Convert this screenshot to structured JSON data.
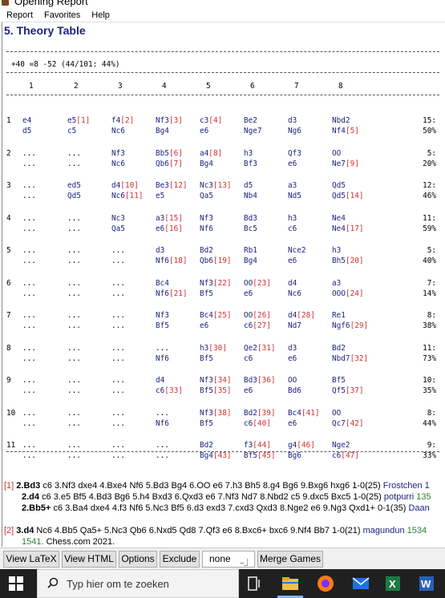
{
  "window": {
    "title": "Opening Report"
  },
  "menu": [
    "Report",
    "Favorites",
    "Help"
  ],
  "heading": "5. Theory Table",
  "stats": "+40 =8 -52 (44/101: 44%)",
  "columns": [
    "1",
    "2",
    "3",
    "4",
    "5",
    "6",
    "7",
    "8"
  ],
  "rows": [
    {
      "num": "1",
      "w": [
        [
          "e4",
          ""
        ],
        [
          "e5",
          "[1]"
        ],
        [
          "f4",
          "[2]"
        ],
        [
          "Nf3",
          "[3]"
        ],
        [
          "c3",
          "[4]"
        ],
        [
          "Be2",
          ""
        ],
        [
          "d3",
          ""
        ],
        [
          "Nbd2",
          ""
        ]
      ],
      "b": [
        [
          "d5",
          ""
        ],
        [
          "c5",
          ""
        ],
        [
          "Nc6",
          ""
        ],
        [
          "Bg4",
          ""
        ],
        [
          "e6",
          ""
        ],
        [
          "Nge7",
          ""
        ],
        [
          "Ng6",
          ""
        ],
        [
          "Nf4",
          "[5]"
        ]
      ],
      "count": "15:",
      "pct": "50%"
    },
    {
      "num": "2",
      "w": [
        [
          "...",
          ""
        ],
        [
          "...",
          ""
        ],
        [
          "Nf3",
          ""
        ],
        [
          "Bb5",
          "[6]"
        ],
        [
          "a4",
          "[8]"
        ],
        [
          "h3",
          ""
        ],
        [
          "Qf3",
          ""
        ],
        [
          "OO",
          ""
        ]
      ],
      "b": [
        [
          "...",
          ""
        ],
        [
          "...",
          ""
        ],
        [
          "Nc6",
          ""
        ],
        [
          "Qb6",
          "[7]"
        ],
        [
          "Bg4",
          ""
        ],
        [
          "Bf3",
          ""
        ],
        [
          "e6",
          ""
        ],
        [
          "Ne7",
          "[9]"
        ]
      ],
      "count": "5:",
      "pct": "20%"
    },
    {
      "num": "3",
      "w": [
        [
          "...",
          ""
        ],
        [
          "ed5",
          ""
        ],
        [
          "d4",
          "[10]"
        ],
        [
          "Be3",
          "[12]"
        ],
        [
          "Nc3",
          "[13]"
        ],
        [
          "d5",
          ""
        ],
        [
          "a3",
          ""
        ],
        [
          "Qd5",
          ""
        ]
      ],
      "b": [
        [
          "...",
          ""
        ],
        [
          "Qd5",
          ""
        ],
        [
          "Nc6",
          "[11]"
        ],
        [
          "e5",
          ""
        ],
        [
          "Qa5",
          ""
        ],
        [
          "Nb4",
          ""
        ],
        [
          "Nd5",
          ""
        ],
        [
          "Qd5",
          "[14]"
        ]
      ],
      "count": "12:",
      "pct": "46%"
    },
    {
      "num": "4",
      "w": [
        [
          "...",
          ""
        ],
        [
          "...",
          ""
        ],
        [
          "Nc3",
          ""
        ],
        [
          "a3",
          "[15]"
        ],
        [
          "Nf3",
          ""
        ],
        [
          "Bd3",
          ""
        ],
        [
          "h3",
          ""
        ],
        [
          "Ne4",
          ""
        ]
      ],
      "b": [
        [
          "...",
          ""
        ],
        [
          "...",
          ""
        ],
        [
          "Qa5",
          ""
        ],
        [
          "e6",
          "[16]"
        ],
        [
          "Nf6",
          ""
        ],
        [
          "Bc5",
          ""
        ],
        [
          "c6",
          ""
        ],
        [
          "Ne4",
          "[17]"
        ]
      ],
      "count": "11:",
      "pct": "59%"
    },
    {
      "num": "5",
      "w": [
        [
          "...",
          ""
        ],
        [
          "...",
          ""
        ],
        [
          "...",
          ""
        ],
        [
          "d3",
          ""
        ],
        [
          "Bd2",
          ""
        ],
        [
          "Rb1",
          ""
        ],
        [
          "Nce2",
          ""
        ],
        [
          "h3",
          ""
        ]
      ],
      "b": [
        [
          "...",
          ""
        ],
        [
          "...",
          ""
        ],
        [
          "...",
          ""
        ],
        [
          "Nf6",
          "[18]"
        ],
        [
          "Qb6",
          "[19]"
        ],
        [
          "Bg4",
          ""
        ],
        [
          "e6",
          ""
        ],
        [
          "Bh5",
          "[20]"
        ]
      ],
      "count": "5:",
      "pct": "40%"
    },
    {
      "num": "6",
      "w": [
        [
          "...",
          ""
        ],
        [
          "...",
          ""
        ],
        [
          "...",
          ""
        ],
        [
          "Bc4",
          ""
        ],
        [
          "Nf3",
          "[22]"
        ],
        [
          "OO",
          "[23]"
        ],
        [
          "d4",
          ""
        ],
        [
          "a3",
          ""
        ]
      ],
      "b": [
        [
          "...",
          ""
        ],
        [
          "...",
          ""
        ],
        [
          "...",
          ""
        ],
        [
          "Nf6",
          "[21]"
        ],
        [
          "Bf5",
          ""
        ],
        [
          "e6",
          ""
        ],
        [
          "Nc6",
          ""
        ],
        [
          "OOO",
          "[24]"
        ]
      ],
      "count": "7:",
      "pct": "14%"
    },
    {
      "num": "7",
      "w": [
        [
          "...",
          ""
        ],
        [
          "...",
          ""
        ],
        [
          "...",
          ""
        ],
        [
          "Nf3",
          ""
        ],
        [
          "Bc4",
          "[25]"
        ],
        [
          "OO",
          "[26]"
        ],
        [
          "d4",
          "[28]"
        ],
        [
          "Re1",
          ""
        ]
      ],
      "b": [
        [
          "...",
          ""
        ],
        [
          "...",
          ""
        ],
        [
          "...",
          ""
        ],
        [
          "Bf5",
          ""
        ],
        [
          "e6",
          ""
        ],
        [
          "c6",
          "[27]"
        ],
        [
          "Nd7",
          ""
        ],
        [
          "Ngf6",
          "[29]"
        ]
      ],
      "count": "8:",
      "pct": "38%"
    },
    {
      "num": "8",
      "w": [
        [
          "...",
          ""
        ],
        [
          "...",
          ""
        ],
        [
          "...",
          ""
        ],
        [
          "...",
          ""
        ],
        [
          "h3",
          "[30]"
        ],
        [
          "Qe2",
          "[31]"
        ],
        [
          "d3",
          ""
        ],
        [
          "Bd2",
          ""
        ]
      ],
      "b": [
        [
          "...",
          ""
        ],
        [
          "...",
          ""
        ],
        [
          "...",
          ""
        ],
        [
          "Nf6",
          ""
        ],
        [
          "Bf5",
          ""
        ],
        [
          "c6",
          ""
        ],
        [
          "e6",
          ""
        ],
        [
          "Nbd7",
          "[32]"
        ]
      ],
      "count": "11:",
      "pct": "73%"
    },
    {
      "num": "9",
      "w": [
        [
          "...",
          ""
        ],
        [
          "...",
          ""
        ],
        [
          "...",
          ""
        ],
        [
          "d4",
          ""
        ],
        [
          "Nf3",
          "[34]"
        ],
        [
          "Bd3",
          "[36]"
        ],
        [
          "OO",
          ""
        ],
        [
          "Bf5",
          ""
        ]
      ],
      "b": [
        [
          "...",
          ""
        ],
        [
          "...",
          ""
        ],
        [
          "...",
          ""
        ],
        [
          "c6",
          "[33]"
        ],
        [
          "Bf5",
          "[35]"
        ],
        [
          "e6",
          ""
        ],
        [
          "Bd6",
          ""
        ],
        [
          "Qf5",
          "[37]"
        ]
      ],
      "count": "10:",
      "pct": "35%"
    },
    {
      "num": "10",
      "w": [
        [
          "...",
          ""
        ],
        [
          "...",
          ""
        ],
        [
          "...",
          ""
        ],
        [
          "...",
          ""
        ],
        [
          "Nf3",
          "[38]"
        ],
        [
          "Bd2",
          "[39]"
        ],
        [
          "Bc4",
          "[41]"
        ],
        [
          "OO",
          ""
        ]
      ],
      "b": [
        [
          "...",
          ""
        ],
        [
          "...",
          ""
        ],
        [
          "...",
          ""
        ],
        [
          "Nf6",
          ""
        ],
        [
          "Bf5",
          ""
        ],
        [
          "c6",
          "[40]"
        ],
        [
          "e6",
          ""
        ],
        [
          "Qc7",
          "[42]"
        ]
      ],
      "count": "8:",
      "pct": "44%"
    },
    {
      "num": "11",
      "w": [
        [
          "...",
          ""
        ],
        [
          "...",
          ""
        ],
        [
          "...",
          ""
        ],
        [
          "...",
          ""
        ],
        [
          "Bd2",
          ""
        ],
        [
          "f3",
          "[44]"
        ],
        [
          "g4",
          "[46]"
        ],
        [
          "Nge2",
          ""
        ]
      ],
      "b": [
        [
          "...",
          ""
        ],
        [
          "...",
          ""
        ],
        [
          "...",
          ""
        ],
        [
          "...",
          ""
        ],
        [
          "Bg4",
          "[43]"
        ],
        [
          "Bf5",
          "[45]"
        ],
        [
          "Bg6",
          ""
        ],
        [
          "c6",
          "[47]"
        ]
      ],
      "count": "9:",
      "pct": "33%"
    }
  ],
  "notes": {
    "n1_ref": "[1]",
    "n1_line1_move": "2.Bd3",
    "n1_line1_text": " c6 3.Nf3 dxe4 4.Bxe4 Nf6 5.Bd3 Bg4 6.OO e6 7.h3 Bh5 8.g4 Bg6 9.Bxg6 hxg6 1-0(25)",
    "n1_line1_player": "Frostchen 1",
    "n1_line2_move": "2.d4",
    "n1_line2_text": " c6 3.e5 Bf5 4.Bd3 Bg6 5.h4 Bxd3 6.Qxd3 e6 7.Nf3 Nd7 8.Nbd2 c5 9.dxc5 Bxc5 1-0(25)",
    "n1_line2_player": "potpurri",
    "n1_line2_yr": "135",
    "n1_line3_move": "2.Bb5+",
    "n1_line3_text": " c6 3.Ba4 dxe4 4.f3 Nf6 5.Nc3 Bf5 6.d3 exd3 7.cxd3 Qxd3 8.Nge2 e6 9.Ng3 Qxd1+ 0-1(35)",
    "n1_line3_player": "Daan",
    "n2_ref": "[2]",
    "n2_move": "3.d4",
    "n2_text": " Nc6 4.Bb5 Qa5+ 5.Nc3 Qb6 6.Nxd5 Qd8 7.Qf3 e6 8.Bxc6+ bxc6 9.Nf4 Bb7 1-0(21)",
    "n2_player": "magundun",
    "n2_yr": "1534",
    "n2_line2_yr": "1541.",
    "n2_line2_text": " Chess.com 2021."
  },
  "buttons": {
    "latex": "View LaTeX",
    "html": "View HTML",
    "options": "Options",
    "exclude": "Exclude",
    "exclude_value": "none",
    "merge": "Merge Games"
  },
  "taskbar": {
    "search_placeholder": "Typ hier om te zoeken"
  },
  "colors": {
    "move": "#1a237e",
    "ref": "#d32f2f",
    "heading": "#1a237e",
    "taskbar": "#202020"
  }
}
